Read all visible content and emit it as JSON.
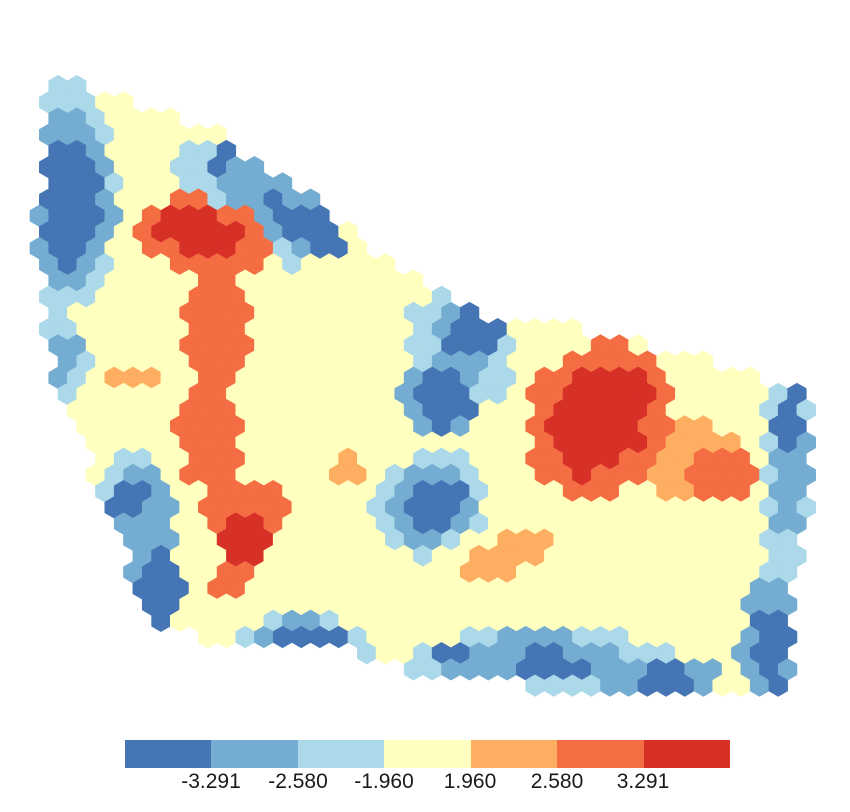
{
  "chart_data": {
    "type": "heatmap",
    "map_kind": "hexagonal-grid",
    "classes": [
      {
        "range": "below -3.291",
        "color": "#4575b4"
      },
      {
        "range": "-3.291 to -2.580",
        "color": "#74add1"
      },
      {
        "range": "-2.580 to -1.960",
        "color": "#abd9e9"
      },
      {
        "range": "-1.960 to 1.960",
        "color": "#ffffbf"
      },
      {
        "range": "1.960 to 2.580",
        "color": "#fdae61"
      },
      {
        "range": "2.580 to 3.291",
        "color": "#f46d43"
      },
      {
        "range": "above 3.291",
        "color": "#d73027"
      }
    ],
    "legend_breaks": [
      "-3.291",
      "-2.580",
      "-1.960",
      "1.960",
      "2.580",
      "3.291"
    ],
    "legend_position": "bottom"
  }
}
